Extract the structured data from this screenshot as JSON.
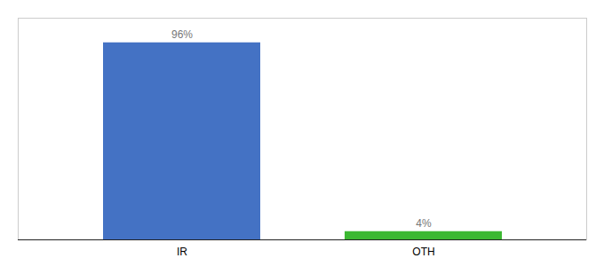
{
  "chart_data": {
    "type": "bar",
    "categories": [
      "IR",
      "OTH"
    ],
    "values": [
      96,
      4
    ],
    "value_labels": [
      "96%",
      "4%"
    ],
    "colors": [
      "#4472c4",
      "#3cb832"
    ],
    "ylim": [
      0,
      108
    ],
    "yticks": [],
    "data_labels": true,
    "tick_labels": "x"
  }
}
